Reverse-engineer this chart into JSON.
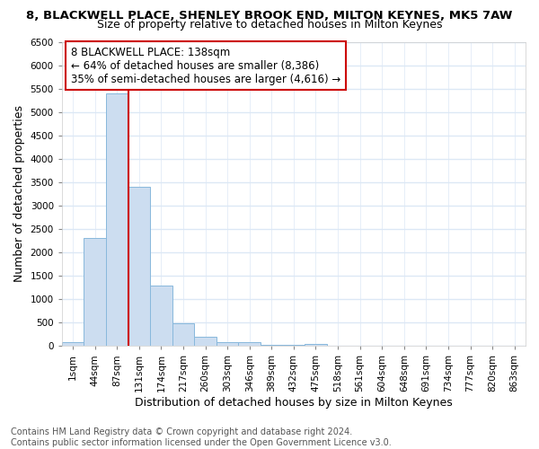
{
  "title": "8, BLACKWELL PLACE, SHENLEY BROOK END, MILTON KEYNES, MK5 7AW",
  "subtitle": "Size of property relative to detached houses in Milton Keynes",
  "xlabel": "Distribution of detached houses by size in Milton Keynes",
  "ylabel": "Number of detached properties",
  "footer_line1": "Contains HM Land Registry data © Crown copyright and database right 2024.",
  "footer_line2": "Contains public sector information licensed under the Open Government Licence v3.0.",
  "bins": [
    "1sqm",
    "44sqm",
    "87sqm",
    "131sqm",
    "174sqm",
    "217sqm",
    "260sqm",
    "303sqm",
    "346sqm",
    "389sqm",
    "432sqm",
    "475sqm",
    "518sqm",
    "561sqm",
    "604sqm",
    "648sqm",
    "691sqm",
    "734sqm",
    "777sqm",
    "820sqm",
    "863sqm"
  ],
  "values": [
    80,
    2300,
    5400,
    3400,
    1300,
    480,
    200,
    90,
    80,
    30,
    20,
    50,
    0,
    0,
    0,
    0,
    0,
    0,
    0,
    0,
    0
  ],
  "bar_color": "#ccddf0",
  "bar_edge_color": "#88b8dc",
  "red_line_index": 3,
  "red_line_label": "8 BLACKWELL PLACE: 138sqm",
  "annotation_line2": "← 64% of detached houses are smaller (8,386)",
  "annotation_line3": "35% of semi-detached houses are larger (4,616) →",
  "annotation_box_color": "#ffffff",
  "annotation_box_edge": "#cc0000",
  "ylim": [
    0,
    6500
  ],
  "yticks": [
    0,
    500,
    1000,
    1500,
    2000,
    2500,
    3000,
    3500,
    4000,
    4500,
    5000,
    5500,
    6000,
    6500
  ],
  "background_color": "#ffffff",
  "grid_color": "#dce8f5",
  "title_fontsize": 9.5,
  "subtitle_fontsize": 9,
  "axis_label_fontsize": 9,
  "tick_fontsize": 7.5,
  "annotation_fontsize": 8.5,
  "footer_fontsize": 7
}
